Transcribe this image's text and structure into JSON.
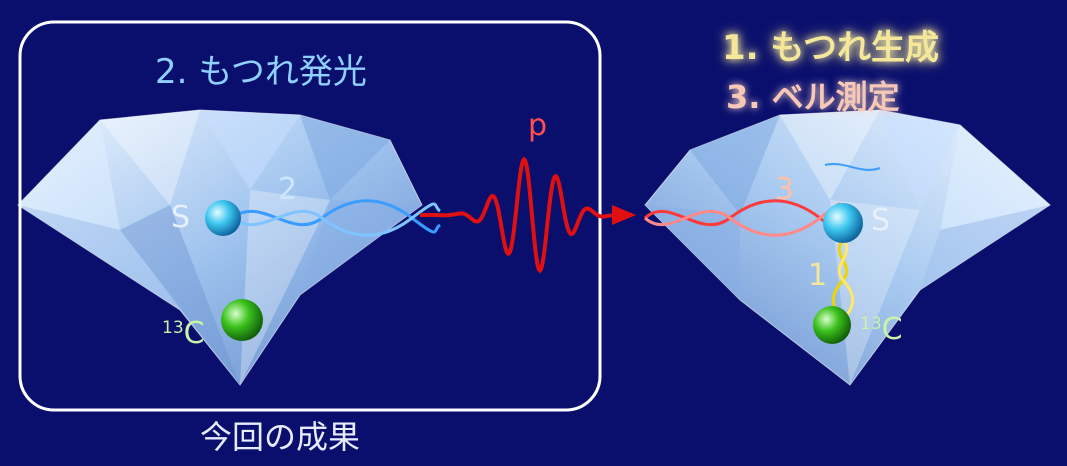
{
  "title_left": "2. もつれ発光",
  "title_right_1": "1. もつれ生成",
  "title_right_2": "3. ベル測定",
  "caption": "今回の成果",
  "photon_label": "p",
  "left_diamond": {
    "spin_label": "S",
    "carbon_sup": "13",
    "carbon_label": "C",
    "wave_number": "2"
  },
  "right_diamond": {
    "spin_label": "S",
    "carbon_sup": "13",
    "carbon_label": "C",
    "wave_number_red": "3",
    "wave_number_yellow": "1"
  },
  "colors": {
    "background": "#0a0f6e",
    "photon": "#e01010",
    "spin_sphere": "#3ec8f0",
    "carbon_sphere": "#3cc21c",
    "blue_wave": "#3a9cff",
    "yellow_wave": "#f0d400"
  }
}
